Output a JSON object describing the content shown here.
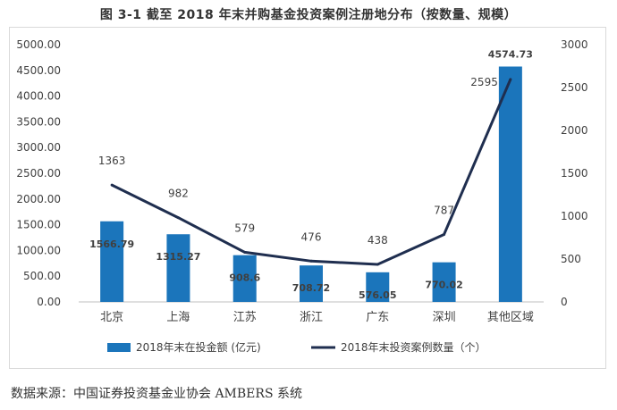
{
  "title": "图 3-1  截至 2018 年末并购基金投资案例注册地分布（按数量、规模）",
  "source": "数据来源：中国证券投资基金业协会 AMBERS 系统",
  "chart_data": {
    "type": "bar+line",
    "categories": [
      "北京",
      "上海",
      "江苏",
      "浙江",
      "广东",
      "深圳",
      "其他区域"
    ],
    "series": [
      {
        "name": "2018年末在投金额 (亿元)",
        "type": "bar",
        "axis": "left",
        "color": "#1b75bb",
        "values": [
          1566.79,
          1315.27,
          908.6,
          708.72,
          576.05,
          770.02,
          4574.73
        ],
        "labels": [
          "1566.79",
          "1315.27",
          "908.6",
          "708.72",
          "576.05",
          "770.02",
          "4574.73"
        ]
      },
      {
        "name": "2018年末投资案例数量（个）",
        "type": "line",
        "axis": "right",
        "color": "#1f2e4f",
        "values": [
          1363,
          982,
          579,
          476,
          438,
          787,
          2595
        ],
        "labels": [
          "1363",
          "982",
          "579",
          "476",
          "438",
          "787",
          "2595"
        ]
      }
    ],
    "y_left": {
      "min": 0,
      "max": 5000,
      "step": 500,
      "ticks": [
        "0.00",
        "500.00",
        "1000.00",
        "1500.00",
        "2000.00",
        "2500.00",
        "3000.00",
        "3500.00",
        "4000.00",
        "4500.00",
        "5000.00"
      ]
    },
    "y_right": {
      "min": 0,
      "max": 3000,
      "step": 500,
      "ticks": [
        "0",
        "500",
        "1000",
        "1500",
        "2000",
        "2500",
        "3000"
      ]
    },
    "legend_position": "bottom",
    "grid": false
  }
}
